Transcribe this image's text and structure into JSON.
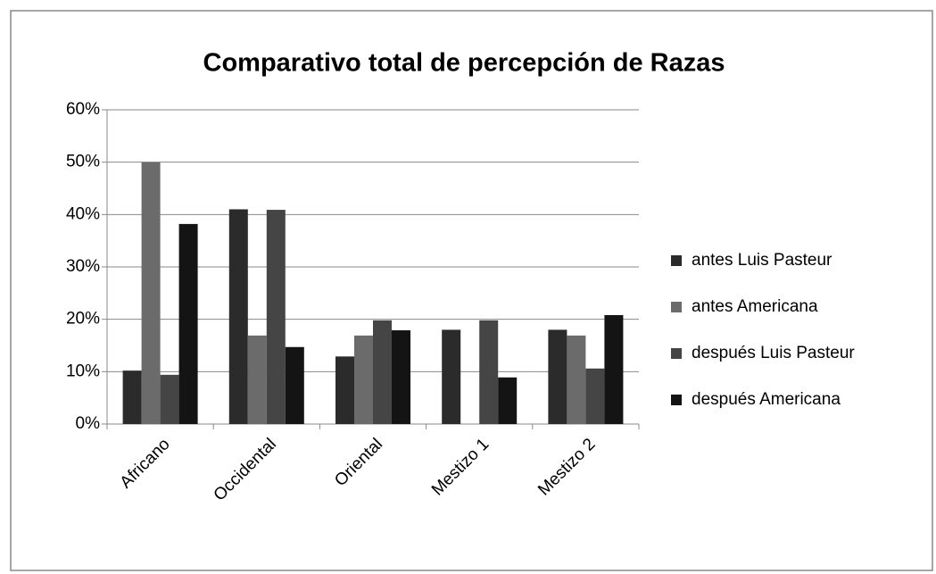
{
  "chart_data": {
    "type": "bar",
    "title": "Comparativo total de percepción de Razas",
    "categories": [
      "Africano",
      "Occidental",
      "Oriental",
      "Mestizo 1",
      "Mestizo 2"
    ],
    "series": [
      {
        "name": "antes Luis Pasteur",
        "color": "#2b2b2b",
        "values": [
          10.2,
          41,
          12.9,
          18,
          18
        ]
      },
      {
        "name": "antes Americana",
        "color": "#6b6b6b",
        "values": [
          50,
          16.9,
          16.9,
          0,
          16.9
        ]
      },
      {
        "name": "después Luis Pasteur",
        "color": "#454545",
        "values": [
          9.4,
          40.9,
          19.8,
          19.8,
          10.6
        ]
      },
      {
        "name": "después Americana",
        "color": "#141414",
        "values": [
          38.2,
          14.7,
          17.9,
          8.9,
          20.8
        ]
      }
    ],
    "ylim": [
      0,
      60
    ],
    "yticks": [
      {
        "value": 0,
        "label": "0%"
      },
      {
        "value": 10,
        "label": "10%"
      },
      {
        "value": 20,
        "label": "20%"
      },
      {
        "value": 30,
        "label": "30%"
      },
      {
        "value": 40,
        "label": "40%"
      },
      {
        "value": 50,
        "label": "50%"
      },
      {
        "value": 60,
        "label": "60%"
      }
    ],
    "grid": true,
    "legend": "right"
  }
}
